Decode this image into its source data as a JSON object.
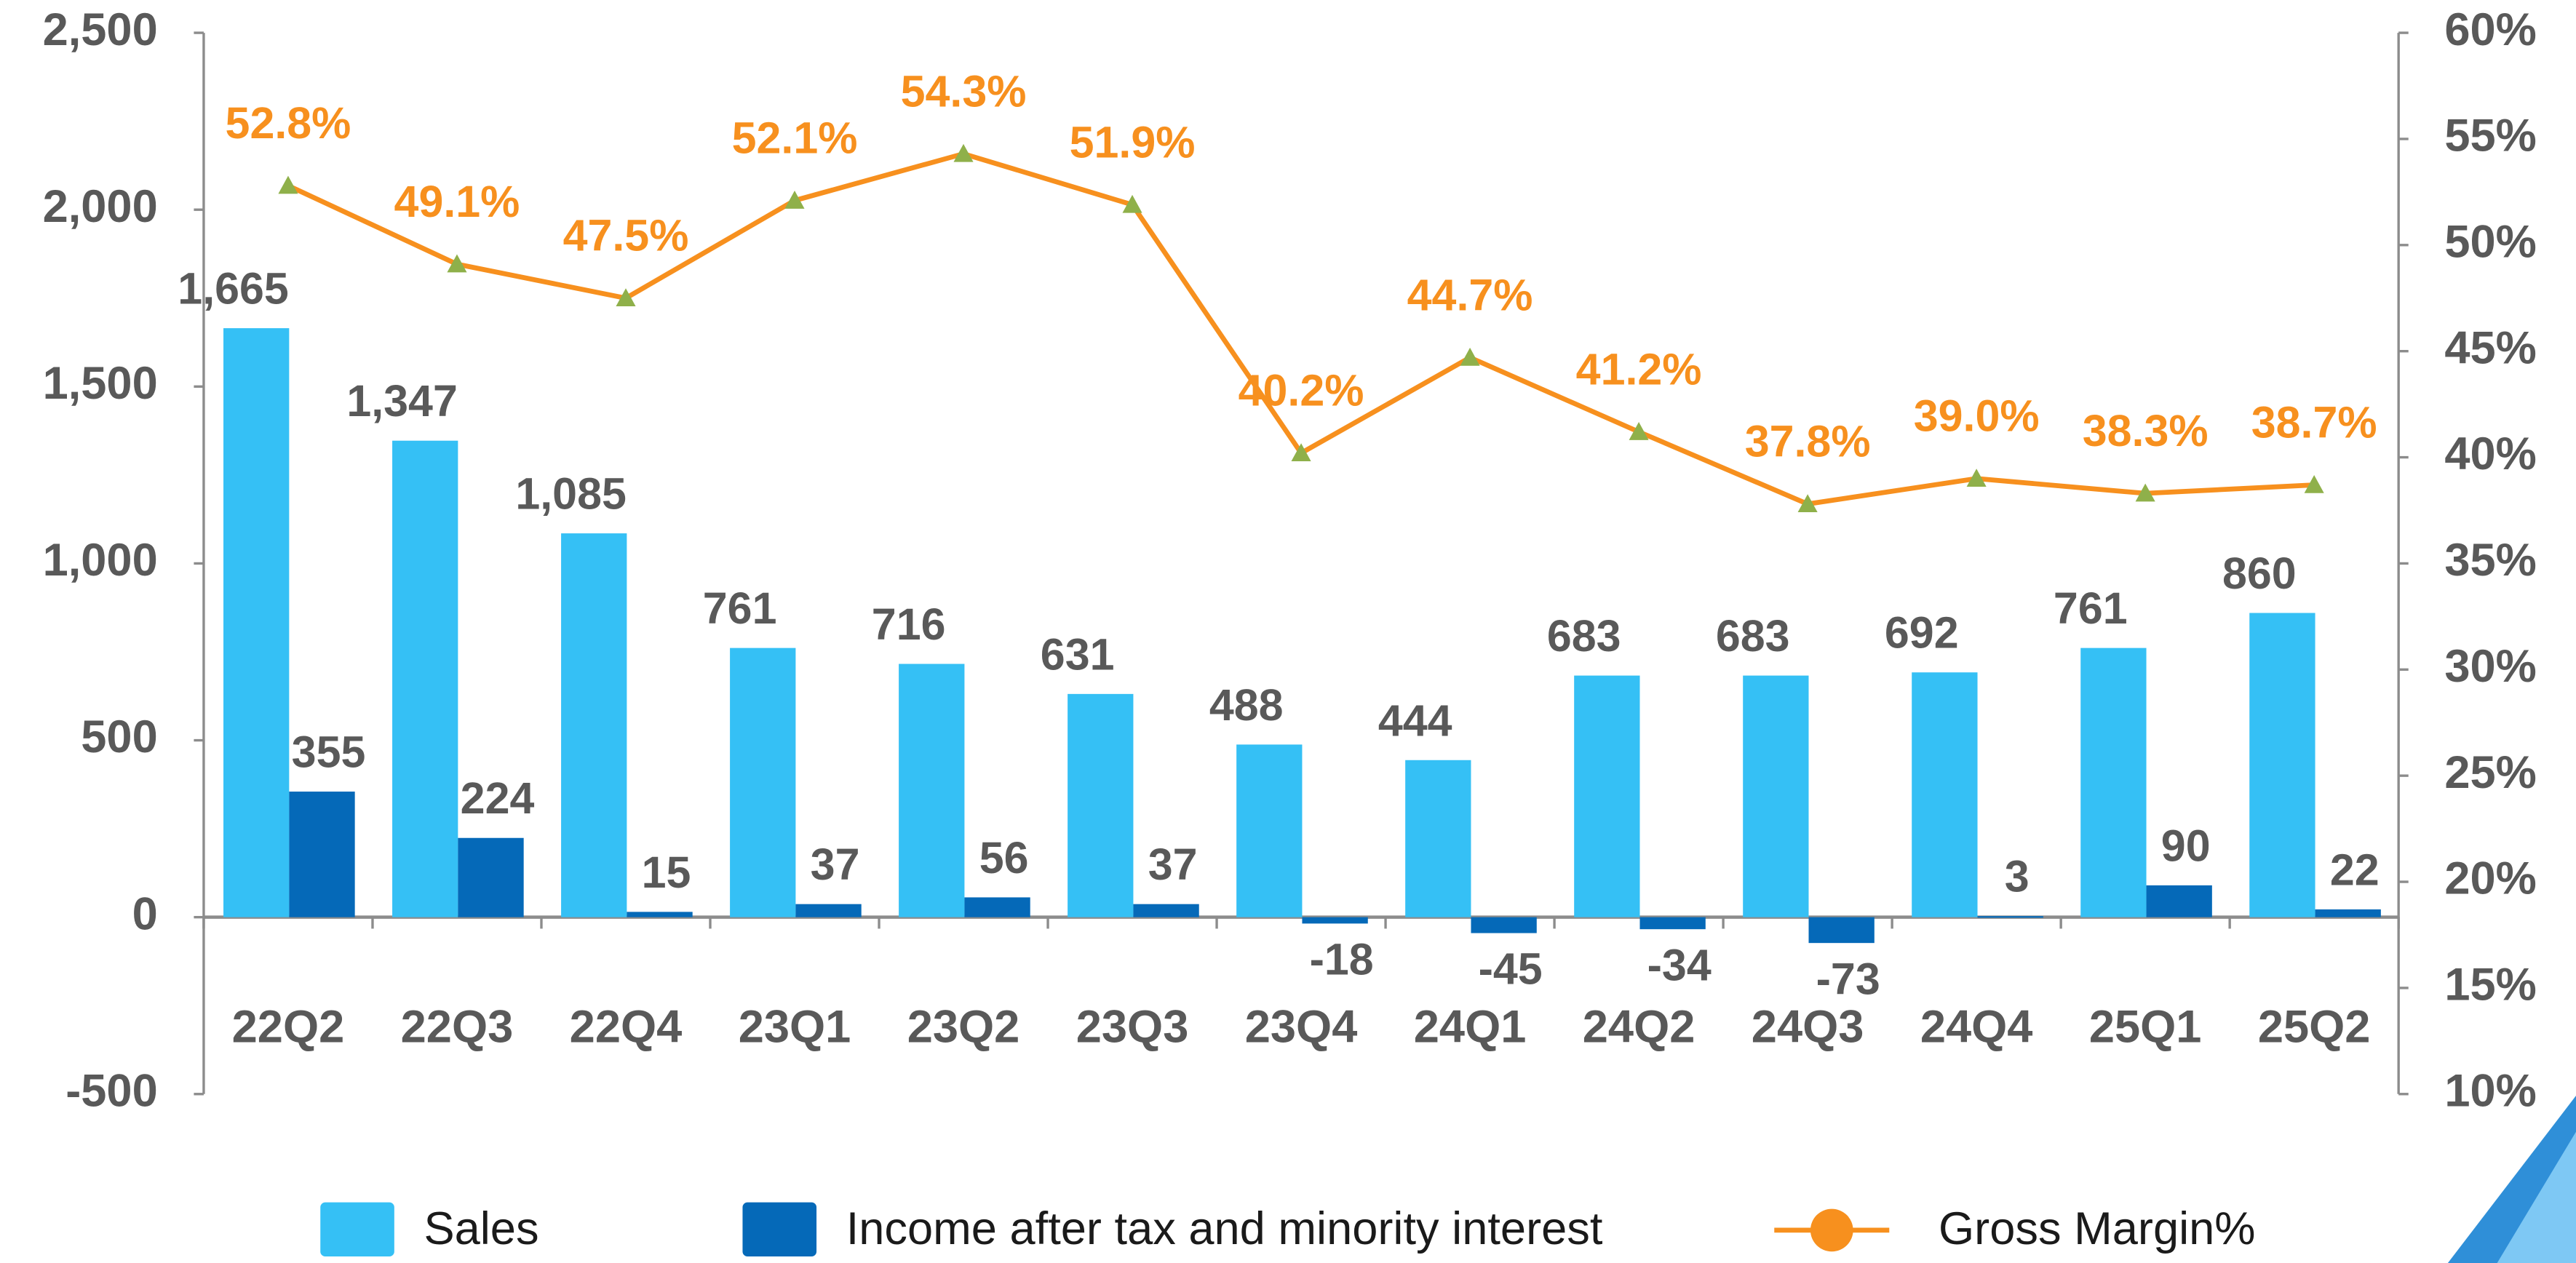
{
  "chart_data": {
    "type": "bar",
    "categories": [
      "22Q2",
      "22Q3",
      "22Q4",
      "23Q1",
      "23Q2",
      "23Q3",
      "23Q4",
      "24Q1",
      "24Q2",
      "24Q3",
      "24Q4",
      "25Q1",
      "25Q2"
    ],
    "series": [
      {
        "name": "Sales",
        "color": "#35c0f5",
        "values": [
          1665,
          1347,
          1085,
          761,
          716,
          631,
          488,
          444,
          683,
          683,
          692,
          761,
          860
        ],
        "value_labels": [
          "1,665",
          "1,347",
          "1,085",
          "761",
          "716",
          "631",
          "488",
          "444",
          "683",
          "683",
          "692",
          "761",
          "860"
        ]
      },
      {
        "name": "Income after tax and minority interest",
        "color": "#0569b8",
        "values": [
          355,
          224,
          15,
          37,
          56,
          37,
          -18,
          -45,
          -34,
          -73,
          3,
          90,
          22
        ]
      },
      {
        "name": "Gross Margin%",
        "type": "line",
        "axis": "y2",
        "color": "#f7901e",
        "marker_color": "#8fb04a",
        "values": [
          52.8,
          49.1,
          47.5,
          52.1,
          54.3,
          51.9,
          40.2,
          44.7,
          41.2,
          37.8,
          39.0,
          38.3,
          38.7
        ],
        "value_labels": [
          "52.8%",
          "49.1%",
          "47.5%",
          "52.1%",
          "54.3%",
          "51.9%",
          "40.2%",
          "44.7%",
          "41.2%",
          "37.8%",
          "39.0%",
          "38.3%",
          "38.7%"
        ]
      }
    ],
    "ylim": [
      -500,
      2500
    ],
    "yticks": [
      {
        "value": -500,
        "label": "-500"
      },
      0,
      500,
      {
        "value": 1000,
        "label": "1,000"
      },
      {
        "value": 1500,
        "label": "1,500"
      },
      {
        "value": 2000,
        "label": "2,000"
      },
      {
        "value": 2500,
        "label": "2,500"
      }
    ],
    "y2lim": [
      10,
      60
    ],
    "y2ticks": [
      {
        "value": 10,
        "label": "10%"
      },
      {
        "value": 15,
        "label": "15%"
      },
      {
        "value": 20,
        "label": "20%"
      },
      {
        "value": 25,
        "label": "25%"
      },
      {
        "value": 30,
        "label": "30%"
      },
      {
        "value": 35,
        "label": "35%"
      },
      {
        "value": 40,
        "label": "40%"
      },
      {
        "value": 45,
        "label": "45%"
      },
      {
        "value": 50,
        "label": "50%"
      },
      {
        "value": 55,
        "label": "55%"
      },
      {
        "value": 60,
        "label": "60%"
      }
    ],
    "grid": false,
    "legend": "bottom"
  }
}
